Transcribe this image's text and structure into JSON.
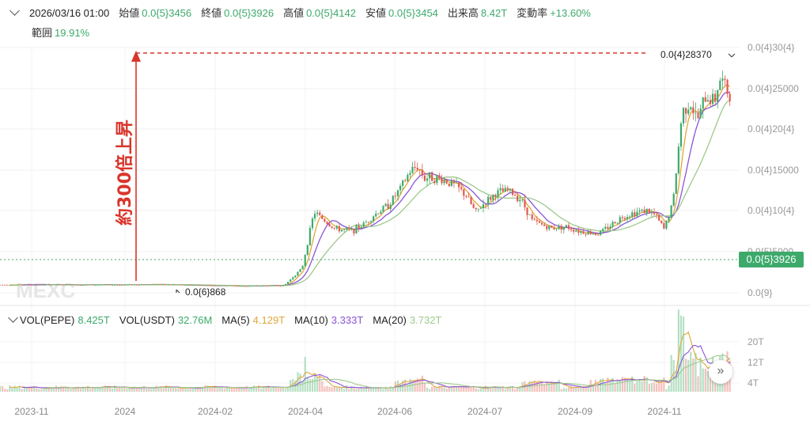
{
  "header": {
    "date": "2026/03/16 01:00",
    "open_label": "始値",
    "open_value": "0.0{5}3456",
    "close_label": "終値",
    "close_value": "0.0{5}3926",
    "high_label": "高値",
    "high_value": "0.0{5}4142",
    "low_label": "安値",
    "low_value": "0.0{5}3454",
    "volume_label": "出来高",
    "volume_value": "8.42T",
    "change_label": "変動率",
    "change_value": "+13.60%",
    "range_label": "範囲",
    "range_value": "19.91%"
  },
  "annotation": {
    "text": "約300倍上昇",
    "high_label": "0.0{4}28370",
    "low_label": "0.0{6}868",
    "color": "#d9352b"
  },
  "watermark": "MEXC",
  "current_price": "0.0{5}3926",
  "indicators": {
    "vol_pepe_label": "VOL(PEPE)",
    "vol_pepe_value": "8.425T",
    "vol_usdt_label": "VOL(USDT)",
    "vol_usdt_value": "32.76M",
    "ma5_label": "MA(5)",
    "ma5_value": "4.129T",
    "ma10_label": "MA(10)",
    "ma10_value": "3.333T",
    "ma20_label": "MA(20)",
    "ma20_value": "3.732T"
  },
  "colors": {
    "up": "#3daa6b",
    "down": "#e2584e",
    "ma5": "#e0a73a",
    "ma10": "#8a55d8",
    "ma20": "#9ec98c"
  },
  "chart_data": {
    "type": "candlestick",
    "x_ticks": [
      "2023-11",
      "2024",
      "2024-02",
      "2024-04",
      "2024-06",
      "2024-07",
      "2024-09",
      "2024-11"
    ],
    "y_ticks": [
      "0.0{4}30{4}",
      "0.0{4}25000",
      "0.0{4}20{4}",
      "0.0{4}15000",
      "0.0{4}10{4}",
      "0.0{5}5000",
      "0.0{9}"
    ],
    "volume_ticks": [
      "20T",
      "12T",
      "4T"
    ],
    "price_trend": [
      [
        0,
        9.8e-07
      ],
      [
        0.1,
        1.02e-06
      ],
      [
        0.2,
        9.5e-07
      ],
      [
        0.3,
        8.9e-07
      ],
      [
        0.365,
        8.7e-07
      ],
      [
        0.38,
        8e-07
      ],
      [
        0.42,
        8.5e-07
      ],
      [
        0.5,
        9e-07
      ],
      [
        0.53,
        9e-07
      ],
      [
        0.59,
        3e-06
      ],
      [
        0.63,
        9.9e-06
      ],
      [
        0.7,
        7.8e-06
      ],
      [
        0.76,
        7.6e-06
      ],
      [
        0.8,
        8.5e-06
      ],
      [
        0.83,
        9.5e-06
      ],
      [
        0.88,
        1.08e-05
      ],
      [
        0.92,
        1.28e-05
      ],
      [
        0.95,
        1.48e-05
      ],
      [
        0.975,
        1.55e-05
      ],
      [
        1.0,
        1.4e-05
      ],
      [
        1.02,
        1.42e-05
      ],
      [
        1.06,
        1.38e-05
      ],
      [
        1.1,
        1.32e-05
      ],
      [
        1.14,
        1.18e-05
      ],
      [
        1.17,
        9.8e-06
      ],
      [
        1.2,
        1.1e-05
      ],
      [
        1.24,
        1.22e-05
      ],
      [
        1.28,
        1.25e-05
      ],
      [
        1.32,
        1.15e-05
      ],
      [
        1.36,
        8.8e-06
      ],
      [
        1.42,
        7.9e-06
      ],
      [
        1.47,
        8.1e-06
      ],
      [
        1.52,
        7.5e-06
      ],
      [
        1.58,
        7.2e-06
      ],
      [
        1.63,
        8.5e-06
      ],
      [
        1.66,
        9.3e-06
      ],
      [
        1.7,
        9.8e-06
      ],
      [
        1.74,
        1.01e-05
      ],
      [
        1.77,
        9.5e-06
      ],
      [
        1.8,
        7.8e-06
      ],
      [
        1.83,
        1.1e-05
      ],
      [
        1.86,
        2.2e-05
      ],
      [
        1.885,
        2.35e-05
      ],
      [
        1.91,
        2.1e-05
      ],
      [
        1.94,
        2.4e-05
      ],
      [
        1.97,
        2.36e-05
      ],
      [
        1.985,
        2.62e-05
      ],
      [
        2.0,
        2.55e-05
      ],
      [
        2.02,
        2.4e-05
      ]
    ]
  }
}
